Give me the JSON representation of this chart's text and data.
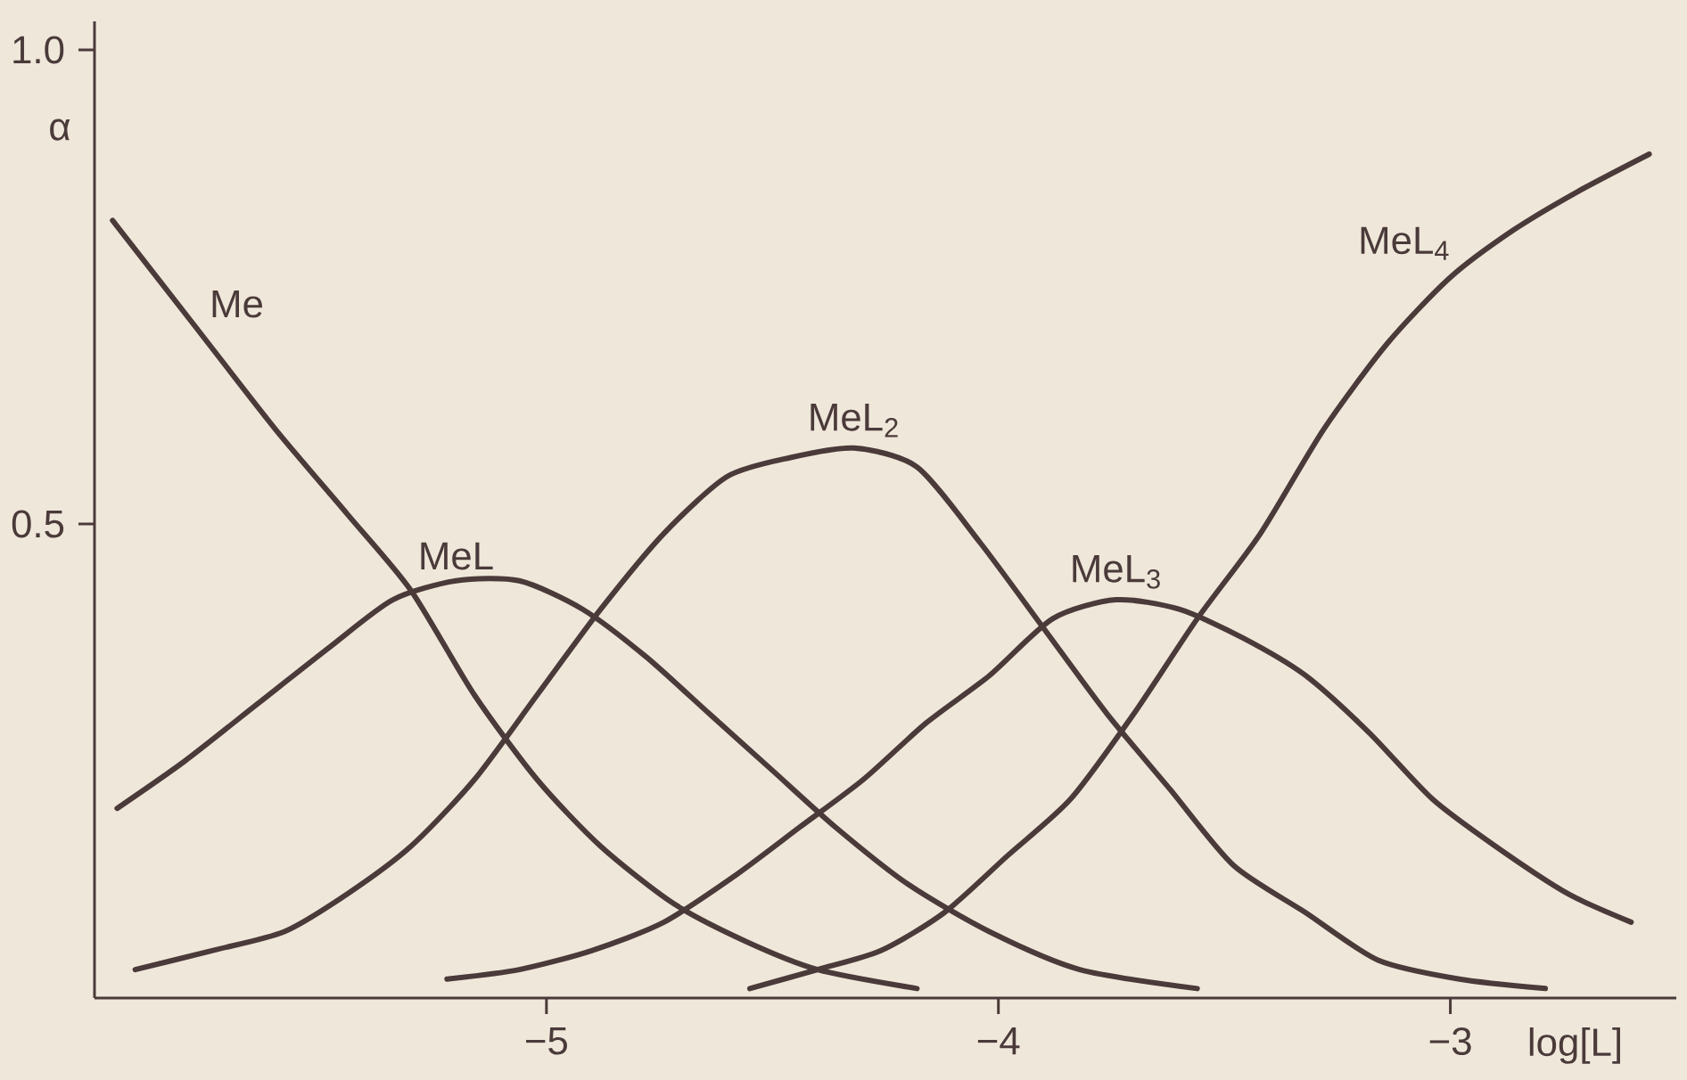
{
  "chart_data": {
    "type": "line",
    "xlabel": "log[L]",
    "ylabel": "α",
    "xlim": [
      -6,
      -2.5
    ],
    "ylim": [
      0,
      1.03
    ],
    "xticks": [
      {
        "value": -5,
        "label": "−5"
      },
      {
        "value": -4,
        "label": "−4"
      },
      {
        "value": -3,
        "label": "−3"
      }
    ],
    "yticks": [
      0.5,
      {
        "value": 1,
        "label": "1.0"
      }
    ],
    "series": [
      {
        "name": "Me",
        "color": "#4b3a3a",
        "x": [
          -5.96,
          -5.78,
          -5.6,
          -5.44,
          -5.3,
          -5.16,
          -5.02,
          -4.88,
          -4.72,
          -4.56,
          -4.4,
          -4.18
        ],
        "values": [
          0.82,
          0.71,
          0.6,
          0.51,
          0.43,
          0.32,
          0.23,
          0.16,
          0.1,
          0.06,
          0.03,
          0.01
        ]
      },
      {
        "name": "MeL",
        "color": "#4b3a3a",
        "x": [
          -5.95,
          -5.8,
          -5.64,
          -5.48,
          -5.34,
          -5.2,
          -5.06,
          -4.92,
          -4.78,
          -4.64,
          -4.5,
          -4.36,
          -4.2,
          -4.02,
          -3.82,
          -3.56
        ],
        "values": [
          0.2,
          0.25,
          0.31,
          0.37,
          0.42,
          0.44,
          0.44,
          0.41,
          0.36,
          0.3,
          0.24,
          0.18,
          0.12,
          0.07,
          0.03,
          0.01
        ]
      },
      {
        "name": "MeL$_{2}$",
        "color": "#4b3a3a",
        "x": [
          -5.91,
          -5.74,
          -5.58,
          -5.44,
          -5.3,
          -5.16,
          -5.02,
          -4.88,
          -4.74,
          -4.6,
          -4.46,
          -4.32,
          -4.18,
          -4.04,
          -3.9,
          -3.76,
          -3.62,
          -3.48,
          -3.32,
          -3.16,
          -2.98,
          -2.79
        ],
        "values": [
          0.03,
          0.05,
          0.07,
          0.11,
          0.16,
          0.23,
          0.32,
          0.41,
          0.49,
          0.55,
          0.57,
          0.58,
          0.56,
          0.48,
          0.39,
          0.3,
          0.22,
          0.14,
          0.09,
          0.04,
          0.02,
          0.01
        ]
      },
      {
        "name": "MeL$_{3}$",
        "color": "#4b3a3a",
        "x": [
          -5.22,
          -5.06,
          -4.9,
          -4.74,
          -4.58,
          -4.44,
          -4.3,
          -4.16,
          -4.02,
          -3.88,
          -3.74,
          -3.6,
          -3.46,
          -3.32,
          -3.18,
          -3.04,
          -2.9,
          -2.74,
          -2.6
        ],
        "values": [
          0.02,
          0.03,
          0.05,
          0.08,
          0.13,
          0.18,
          0.23,
          0.29,
          0.34,
          0.4,
          0.42,
          0.41,
          0.38,
          0.34,
          0.28,
          0.21,
          0.16,
          0.11,
          0.08
        ]
      },
      {
        "name": "MeL$_{4}$",
        "color": "#4b3a3a",
        "x": [
          -4.55,
          -4.4,
          -4.26,
          -4.12,
          -3.98,
          -3.84,
          -3.7,
          -3.56,
          -3.42,
          -3.28,
          -3.14,
          -3.0,
          -2.86,
          -2.72,
          -2.56
        ],
        "values": [
          0.01,
          0.03,
          0.05,
          0.09,
          0.15,
          0.21,
          0.3,
          0.4,
          0.49,
          0.6,
          0.69,
          0.76,
          0.81,
          0.85,
          0.89
        ]
      }
    ]
  }
}
